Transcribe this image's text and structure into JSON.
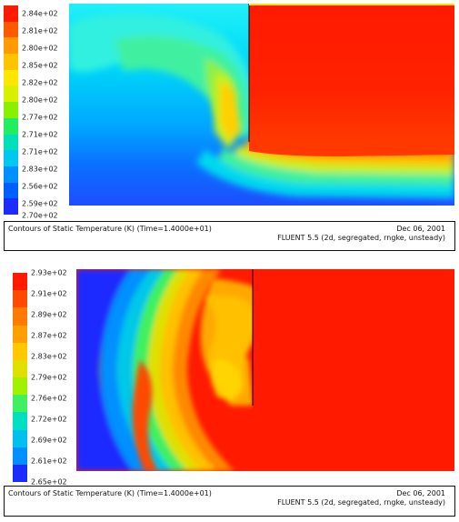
{
  "figures": [
    {
      "legend": {
        "ticks": [
          "2.84e+02",
          "2.81e+02",
          "2.80e+02",
          "2.85e+02",
          "2.82e+02",
          "2.80e+02",
          "2.77e+02",
          "2.71e+02",
          "2.71e+02",
          "2.83e+02",
          "2.56e+02",
          "2.59e+02",
          "2.70e+02"
        ]
      },
      "caption": {
        "title": "Contours of Static Temperature (K)  (Time=1.4000e+01)",
        "date": "Dec 06, 2001",
        "solver": "FLUENT 5.5 (2d, segregated, rngke, unsteady)"
      },
      "colors": {
        "hot": "#ff1a00",
        "cold": "#1e4dff"
      }
    },
    {
      "legend": {
        "ticks": [
          "2.93e+02",
          "2.91e+02",
          "2.89e+02",
          "2.87e+02",
          "2.83e+02",
          "2.79e+02",
          "2.76e+02",
          "2.72e+02",
          "2.69e+02",
          "2.61e+02",
          "2.65e+02"
        ]
      },
      "caption": {
        "title": "Contours of Static Temperature (K)  (Time=1.4000e+01)",
        "date": "Dec 06, 2001",
        "solver": "FLUENT 5.5 (2d, segregated, rngke, unsteady)"
      },
      "colors": {
        "hot": "#ff1a00",
        "cold": "#1c2cff"
      }
    }
  ]
}
